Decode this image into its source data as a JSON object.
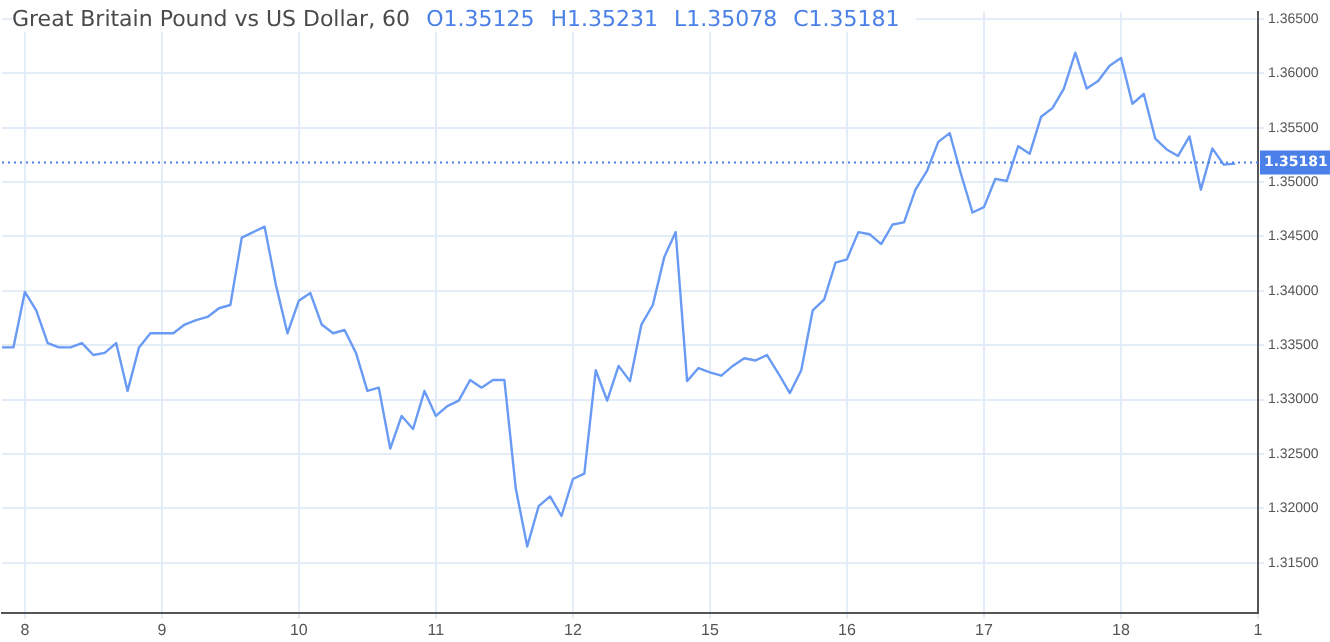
{
  "chart_data": {
    "type": "line",
    "title": "Great Britain Pound vs US Dollar, 60",
    "annotations": [
      "O1.35125",
      "H1.35231",
      "L1.35078",
      "C1.35181"
    ],
    "categories": [
      null,
      null,
      "8",
      null,
      null,
      null,
      null,
      null,
      null,
      null,
      null,
      null,
      null,
      null,
      "9",
      null,
      null,
      null,
      null,
      null,
      null,
      null,
      null,
      null,
      null,
      null,
      "10",
      null,
      null,
      null,
      null,
      null,
      null,
      null,
      null,
      null,
      null,
      null,
      "11",
      null,
      null,
      null,
      null,
      null,
      null,
      null,
      null,
      null,
      null,
      null,
      "12",
      null,
      null,
      null,
      null,
      null,
      null,
      null,
      null,
      null,
      null,
      null,
      "15",
      null,
      null,
      null,
      null,
      null,
      null,
      null,
      null,
      null,
      null,
      null,
      "16",
      null,
      null,
      null,
      null,
      null,
      null,
      null,
      null,
      null,
      null,
      null,
      "17",
      null,
      null,
      null,
      null,
      null,
      null,
      null,
      null,
      null,
      null,
      null,
      "18",
      null,
      null,
      null,
      null,
      null,
      null,
      null,
      null,
      null,
      null,
      null,
      "1"
    ],
    "series": [
      {
        "color": "#6a9bf4",
        "values": [
          1.3348,
          1.3348,
          1.3399,
          1.3382,
          1.3352,
          1.3348,
          1.3348,
          1.3352,
          1.3341,
          1.3343,
          1.3352,
          1.3308,
          1.3348,
          1.3361,
          1.3361,
          1.3361,
          1.3369,
          1.3373,
          1.3376,
          1.3384,
          1.3387,
          1.3449,
          1.3454,
          1.3459,
          1.3405,
          1.3361,
          1.3391,
          1.3398,
          1.3369,
          1.3361,
          1.3364,
          1.3343,
          1.3308,
          1.3311,
          1.3255,
          1.3285,
          1.3273,
          1.3308,
          1.3285,
          1.3294,
          1.3299,
          1.3318,
          1.3311,
          1.3318,
          1.3318,
          1.3218,
          1.3165,
          1.3202,
          1.3211,
          1.3193,
          1.3227,
          1.3232,
          1.3327,
          1.3299,
          1.3331,
          1.3317,
          1.3369,
          1.3387,
          1.3431,
          1.3454,
          1.3317,
          1.3329,
          1.3325,
          1.3322,
          1.3331,
          1.3338,
          1.3336,
          1.3341,
          1.3324,
          1.3306,
          1.3327,
          1.3382,
          1.3392,
          1.3426,
          1.3429,
          1.3454,
          1.3452,
          1.3443,
          1.3461,
          1.3463,
          1.3493,
          1.351,
          1.3537,
          1.3545,
          1.3507,
          1.3472,
          1.3477,
          1.3503,
          1.3501,
          1.3533,
          1.3526,
          1.356,
          1.3568,
          1.3586,
          1.3619,
          1.3586,
          1.3593,
          1.3607,
          1.3614,
          1.3572,
          1.3581,
          1.354,
          1.353,
          1.3524,
          1.3542,
          1.3493,
          1.3531,
          1.3516,
          1.3517,
          null,
          null
        ]
      }
    ],
    "ylim": [
      1.3104,
      1.3656
    ],
    "yticks": [
      {
        "value": 1.315,
        "label": "1.31500"
      },
      {
        "value": 1.32,
        "label": "1.32000"
      },
      {
        "value": 1.325,
        "label": "1.32500"
      },
      {
        "value": 1.33,
        "label": "1.33000"
      },
      {
        "value": 1.335,
        "label": "1.33500"
      },
      {
        "value": 1.34,
        "label": "1.34000"
      },
      {
        "value": 1.345,
        "label": "1.34500"
      },
      {
        "value": 1.35,
        "label": "1.35000"
      },
      {
        "value": 1.355,
        "label": "1.35500"
      },
      {
        "value": 1.36,
        "label": "1.36000"
      },
      {
        "value": 1.365,
        "label": "1.36500"
      }
    ],
    "ref_lines": [
      {
        "axis": "y",
        "value": 1.35181,
        "label": "1.35181",
        "color": "#4a80e8",
        "line_style": "dotted"
      }
    ],
    "grid": true,
    "legend": false,
    "marker": "none",
    "line_style": "solid"
  }
}
